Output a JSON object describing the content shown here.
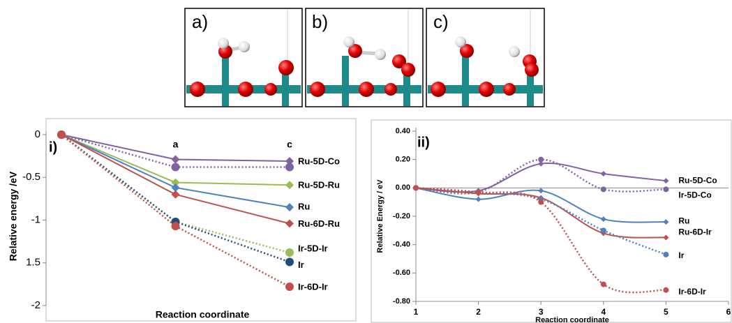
{
  "panels": [
    {
      "label": "a)"
    },
    {
      "label": "b)"
    },
    {
      "label": "c)"
    }
  ],
  "chart_data": [
    {
      "type": "line",
      "panel_label": "i)",
      "x_label": "Reaction coordinate",
      "y_label": "Relative energy /eV",
      "categories": [
        null,
        "a",
        "c"
      ],
      "ylim": [
        -2,
        0
      ],
      "yticks": [
        0,
        -0.5,
        -1,
        {
          "value": -1.5,
          "label": "1.5"
        },
        -2
      ],
      "smooth": false,
      "series": [
        {
          "name": "Ru-5D-Co",
          "color": "#8064a2",
          "dash": false,
          "marker": "diamond",
          "values": [
            0,
            -0.29,
            -0.31
          ]
        },
        {
          "color": "#8064a2",
          "dash": true,
          "marker": "circle",
          "values": [
            0,
            -0.38,
            -0.38
          ]
        },
        {
          "name": "Ru-5D-Ru",
          "color": "#9bbb59",
          "dash": false,
          "marker": "diamond",
          "values": [
            0,
            -0.56,
            -0.59
          ]
        },
        {
          "name": "Ru",
          "color": "#4f81bd",
          "dash": false,
          "marker": "diamond",
          "values": [
            0,
            -0.62,
            -0.85
          ]
        },
        {
          "name": "Ru-6D-Ru",
          "color": "#c0504d",
          "dash": false,
          "marker": "diamond",
          "values": [
            0,
            -0.7,
            -1.04
          ]
        },
        {
          "name": "Ir-5D-Ir",
          "color": "#9bbb59",
          "dash": true,
          "marker": "circle",
          "values": [
            0,
            -1.02,
            -1.38
          ]
        },
        {
          "name": "Ir",
          "color": "#1f4e79",
          "dash": true,
          "marker": "circle",
          "values": [
            0,
            -1.02,
            -1.49
          ]
        },
        {
          "name": "Ir-6D-Ir",
          "color": "#c0504d",
          "dash": true,
          "marker": "circle",
          "values": [
            0,
            -1.07,
            -1.78
          ]
        }
      ]
    },
    {
      "type": "line",
      "panel_label": "ii)",
      "x_label": "Reaction coordinate",
      "y_label": "Relative Energy / eV",
      "x": [
        1,
        2,
        3,
        4,
        5
      ],
      "xlim": [
        1,
        6
      ],
      "xticks": [
        1,
        2,
        3,
        4,
        5,
        6
      ],
      "ylim": [
        -0.8,
        0.4
      ],
      "yticks": [
        {
          "value": 0.4,
          "label": "0.40"
        },
        {
          "value": 0.2,
          "label": "0.20"
        },
        {
          "value": 0,
          "label": "0.00"
        },
        {
          "value": -0.2,
          "label": "-0.20"
        },
        {
          "value": -0.4,
          "label": "-0.40"
        },
        {
          "value": -0.6,
          "label": "-0.60"
        },
        {
          "value": -0.8,
          "label": "-0.80"
        }
      ],
      "smooth": true,
      "series": [
        {
          "name": "Ru-5D-Co",
          "color": "#8064a2",
          "dash": false,
          "marker": "diamond",
          "values": [
            0,
            -0.02,
            0.17,
            0.1,
            0.05
          ]
        },
        {
          "name": "Ir-5D-Co",
          "color": "#8064a2",
          "dash": true,
          "marker": "circle",
          "values": [
            0,
            -0.03,
            0.2,
            -0.01,
            -0.01
          ]
        },
        {
          "name": "Ru",
          "color": "#4f81bd",
          "dash": false,
          "marker": "diamond",
          "values": [
            0,
            -0.08,
            -0.02,
            -0.22,
            -0.24
          ]
        },
        {
          "name": "Ru-6D-Ir",
          "color": "#c0504d",
          "dash": false,
          "marker": "diamond",
          "values": [
            0,
            -0.04,
            -0.07,
            -0.32,
            -0.35
          ]
        },
        {
          "name": "Ir",
          "color": "#4f81bd",
          "dash": true,
          "marker": "circle",
          "values": [
            0,
            -0.03,
            -0.08,
            -0.3,
            -0.47
          ]
        },
        {
          "name": "Ir-6D-Ir",
          "color": "#c0504d",
          "dash": true,
          "marker": "circle",
          "values": [
            0,
            -0.03,
            -0.1,
            -0.68,
            -0.72
          ]
        }
      ]
    }
  ]
}
